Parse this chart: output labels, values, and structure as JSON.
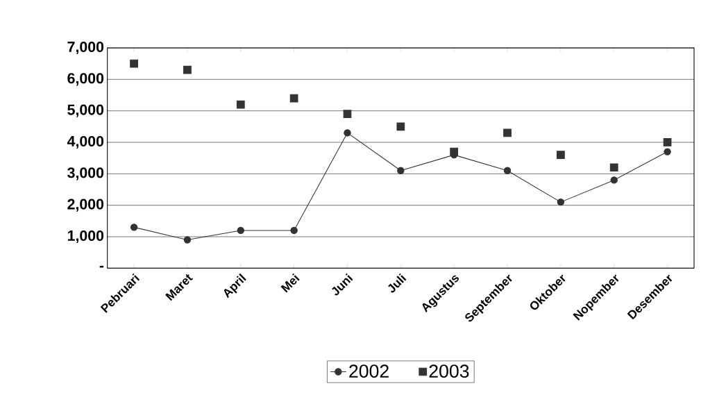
{
  "chart_data": {
    "type": "line",
    "categories": [
      "Pebruari",
      "Maret",
      "April",
      "Mei",
      "Juni",
      "Juli",
      "Agustus",
      "September",
      "Oktober",
      "Nopember",
      "Desember"
    ],
    "series": [
      {
        "name": "2002",
        "color": "#333333",
        "marker": "circle",
        "values": [
          1300,
          900,
          1200,
          1200,
          4300,
          3100,
          3600,
          3100,
          2100,
          2800,
          3700
        ]
      },
      {
        "name": "2003",
        "color": "#333333",
        "type": "scatter",
        "marker": "square",
        "values": [
          6500,
          6300,
          5200,
          5400,
          4900,
          4500,
          3700,
          4300,
          3600,
          3200,
          4000
        ]
      }
    ],
    "ylim": [
      0,
      7000
    ],
    "yticks": [
      {
        "value": 0,
        "label": "-"
      },
      {
        "value": 1000,
        "label": "1,000"
      },
      {
        "value": 2000,
        "label": "2,000"
      },
      {
        "value": 3000,
        "label": "3,000"
      },
      {
        "value": 4000,
        "label": "4,000"
      },
      {
        "value": 5000,
        "label": "5,000"
      },
      {
        "value": 6000,
        "label": "6,000"
      },
      {
        "value": 7000,
        "label": "7,000"
      }
    ],
    "grid": "y",
    "legend": "bottom"
  }
}
